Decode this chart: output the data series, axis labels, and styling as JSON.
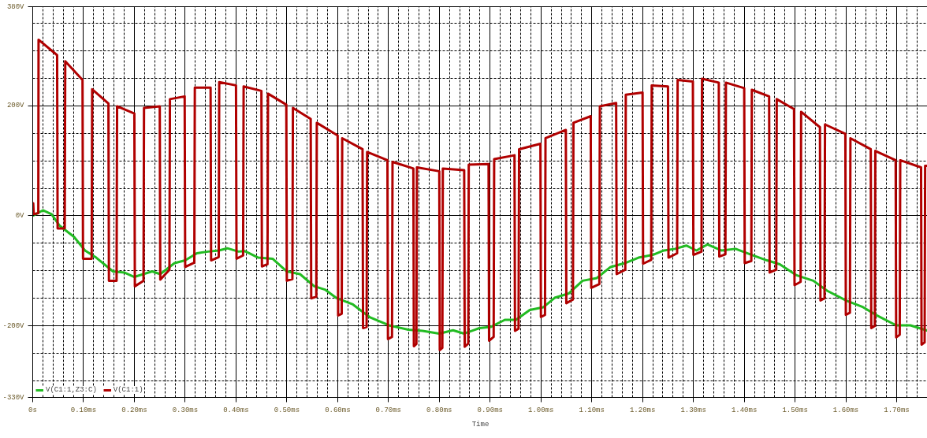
{
  "chart_data": {
    "type": "line",
    "xlabel": "Time",
    "legend": "bottom left",
    "grid": true,
    "xlim": [
      0,
      1.762
    ],
    "ylim": [
      -330,
      380
    ],
    "xticks": [
      {
        "value": 0,
        "label": "0s"
      },
      {
        "value": 0.02,
        "label": null
      },
      {
        "value": 0.04,
        "label": null
      },
      {
        "value": 0.06,
        "label": null
      },
      {
        "value": 0.08,
        "label": null
      },
      {
        "value": 0.1,
        "label": "0.10ms"
      },
      {
        "value": 0.12,
        "label": null
      },
      {
        "value": 0.14,
        "label": null
      },
      {
        "value": 0.16,
        "label": null
      },
      {
        "value": 0.18,
        "label": null
      },
      {
        "value": 0.2,
        "label": "0.20ms"
      },
      {
        "value": 0.22,
        "label": null
      },
      {
        "value": 0.24,
        "label": null
      },
      {
        "value": 0.26,
        "label": null
      },
      {
        "value": 0.28,
        "label": null
      },
      {
        "value": 0.3,
        "label": "0.30ms"
      },
      {
        "value": 0.32,
        "label": null
      },
      {
        "value": 0.34,
        "label": null
      },
      {
        "value": 0.36,
        "label": null
      },
      {
        "value": 0.38,
        "label": null
      },
      {
        "value": 0.4,
        "label": "0.40ms"
      },
      {
        "value": 0.42,
        "label": null
      },
      {
        "value": 0.44,
        "label": null
      },
      {
        "value": 0.46,
        "label": null
      },
      {
        "value": 0.48,
        "label": null
      },
      {
        "value": 0.5,
        "label": "0.50ms"
      },
      {
        "value": 0.52,
        "label": null
      },
      {
        "value": 0.54,
        "label": null
      },
      {
        "value": 0.56,
        "label": null
      },
      {
        "value": 0.58,
        "label": null
      },
      {
        "value": 0.6,
        "label": "0.60ms"
      },
      {
        "value": 0.62,
        "label": null
      },
      {
        "value": 0.64,
        "label": null
      },
      {
        "value": 0.66,
        "label": null
      },
      {
        "value": 0.68,
        "label": null
      },
      {
        "value": 0.7,
        "label": "0.70ms"
      },
      {
        "value": 0.72,
        "label": null
      },
      {
        "value": 0.74,
        "label": null
      },
      {
        "value": 0.76,
        "label": null
      },
      {
        "value": 0.78,
        "label": null
      },
      {
        "value": 0.8,
        "label": "0.80ms"
      },
      {
        "value": 0.82,
        "label": null
      },
      {
        "value": 0.84,
        "label": null
      },
      {
        "value": 0.86,
        "label": null
      },
      {
        "value": 0.88,
        "label": null
      },
      {
        "value": 0.9,
        "label": "0.90ms"
      },
      {
        "value": 0.92,
        "label": null
      },
      {
        "value": 0.94,
        "label": null
      },
      {
        "value": 0.96,
        "label": null
      },
      {
        "value": 0.98,
        "label": null
      },
      {
        "value": 1.0,
        "label": "1.00ms"
      },
      {
        "value": 1.02,
        "label": null
      },
      {
        "value": 1.04,
        "label": null
      },
      {
        "value": 1.06,
        "label": null
      },
      {
        "value": 1.08,
        "label": null
      },
      {
        "value": 1.1,
        "label": "1.10ms"
      },
      {
        "value": 1.12,
        "label": null
      },
      {
        "value": 1.14,
        "label": null
      },
      {
        "value": 1.16,
        "label": null
      },
      {
        "value": 1.18,
        "label": null
      },
      {
        "value": 1.2,
        "label": "1.20ms"
      },
      {
        "value": 1.22,
        "label": null
      },
      {
        "value": 1.24,
        "label": null
      },
      {
        "value": 1.26,
        "label": null
      },
      {
        "value": 1.28,
        "label": null
      },
      {
        "value": 1.3,
        "label": "1.30ms"
      },
      {
        "value": 1.32,
        "label": null
      },
      {
        "value": 1.34,
        "label": null
      },
      {
        "value": 1.36,
        "label": null
      },
      {
        "value": 1.38,
        "label": null
      },
      {
        "value": 1.4,
        "label": "1.40ms"
      },
      {
        "value": 1.42,
        "label": null
      },
      {
        "value": 1.44,
        "label": null
      },
      {
        "value": 1.46,
        "label": null
      },
      {
        "value": 1.48,
        "label": null
      },
      {
        "value": 1.5,
        "label": "1.50ms"
      },
      {
        "value": 1.52,
        "label": null
      },
      {
        "value": 1.54,
        "label": null
      },
      {
        "value": 1.56,
        "label": null
      },
      {
        "value": 1.58,
        "label": null
      },
      {
        "value": 1.6,
        "label": "1.60ms"
      },
      {
        "value": 1.62,
        "label": null
      },
      {
        "value": 1.64,
        "label": null
      },
      {
        "value": 1.66,
        "label": null
      },
      {
        "value": 1.68,
        "label": null
      },
      {
        "value": 1.7,
        "label": "1.70ms"
      },
      {
        "value": 1.72,
        "label": null
      },
      {
        "value": 1.74,
        "label": null
      }
    ],
    "yticks": [
      {
        "value": -330,
        "label": "-330V"
      },
      {
        "value": -300,
        "label": null
      },
      {
        "value": -250,
        "label": null
      },
      {
        "value": -200,
        "label": "-200V"
      },
      {
        "value": -150,
        "label": null
      },
      {
        "value": -100,
        "label": null
      },
      {
        "value": -50,
        "label": null
      },
      {
        "value": 0,
        "label": "0V"
      },
      {
        "value": 50,
        "label": null
      },
      {
        "value": 100,
        "label": null
      },
      {
        "value": 150,
        "label": null
      },
      {
        "value": 200,
        "label": "200V"
      },
      {
        "value": 250,
        "label": null
      },
      {
        "value": 300,
        "label": null
      },
      {
        "value": 350,
        "label": null
      },
      {
        "value": 380,
        "label": "380V"
      }
    ],
    "series": [
      {
        "name": "V(C1:1,Z3:C)",
        "color": "#22bb22",
        "x": [
          0,
          0.02,
          0.037,
          0.053,
          0.081,
          0.103,
          0.125,
          0.158,
          0.18,
          0.2,
          0.235,
          0.251,
          0.279,
          0.3,
          0.323,
          0.345,
          0.366,
          0.383,
          0.405,
          0.417,
          0.444,
          0.472,
          0.5,
          0.526,
          0.554,
          0.575,
          0.597,
          0.63,
          0.663,
          0.701,
          0.739,
          0.767,
          0.8,
          0.827,
          0.849,
          0.87,
          0.879,
          0.901,
          0.929,
          0.951,
          0.978,
          1.005,
          1.027,
          1.055,
          1.082,
          1.11,
          1.137,
          1.165,
          1.192,
          1.22,
          1.242,
          1.264,
          1.286,
          1.306,
          1.328,
          1.355,
          1.383,
          1.415,
          1.445,
          1.47,
          1.503,
          1.536,
          1.563,
          1.601,
          1.634,
          1.661,
          1.699,
          1.727,
          1.762
        ],
        "values": [
          0,
          10,
          3,
          -18,
          -38,
          -63,
          -76,
          -101,
          -103,
          -111,
          -101,
          -106,
          -86,
          -81,
          -68,
          -65,
          -63,
          -59,
          -65,
          -64,
          -76,
          -78,
          -101,
          -106,
          -128,
          -134,
          -149,
          -161,
          -184,
          -199,
          -207,
          -209,
          -214,
          -208,
          -214,
          -207,
          -204,
          -202,
          -189,
          -189,
          -171,
          -166,
          -149,
          -141,
          -118,
          -113,
          -93,
          -86,
          -76,
          -71,
          -63,
          -60,
          -54,
          -63,
          -52,
          -63,
          -60,
          -71,
          -81,
          -88,
          -108,
          -118,
          -136,
          -154,
          -166,
          -181,
          -199,
          -199,
          -209
        ]
      },
      {
        "name": "V(C1:1)",
        "color": "#b00000",
        "x": [
          0,
          0.001,
          0.002,
          0.011,
          0.0115,
          0.048,
          0.049,
          0.063,
          0.064,
          0.098,
          0.099,
          0.116,
          0.117,
          0.149,
          0.15,
          0.165,
          0.166,
          0.2,
          0.201,
          0.218,
          0.219,
          0.25,
          0.251,
          0.269,
          0.27,
          0.299,
          0.3,
          0.318,
          0.319,
          0.35,
          0.351,
          0.366,
          0.367,
          0.4,
          0.401,
          0.414,
          0.415,
          0.45,
          0.451,
          0.462,
          0.463,
          0.499,
          0.5,
          0.511,
          0.512,
          0.547,
          0.548,
          0.558,
          0.559,
          0.6,
          0.601,
          0.608,
          0.609,
          0.649,
          0.65,
          0.657,
          0.658,
          0.698,
          0.699,
          0.707,
          0.708,
          0.749,
          0.75,
          0.755,
          0.756,
          0.8,
          0.801,
          0.806,
          0.807,
          0.849,
          0.85,
          0.857,
          0.858,
          0.897,
          0.898,
          0.907,
          0.908,
          0.948,
          0.949,
          0.956,
          0.957,
          0.999,
          1.0,
          1.008,
          1.009,
          1.049,
          1.05,
          1.063,
          1.064,
          1.098,
          1.099,
          1.115,
          1.116,
          1.148,
          1.149,
          1.166,
          1.167,
          1.2,
          1.201,
          1.217,
          1.218,
          1.25,
          1.251,
          1.268,
          1.269,
          1.299,
          1.3,
          1.316,
          1.317,
          1.35,
          1.351,
          1.363,
          1.364,
          1.4,
          1.401,
          1.414,
          1.415,
          1.449,
          1.45,
          1.463,
          1.464,
          1.498,
          1.499,
          1.511,
          1.512,
          1.549,
          1.55,
          1.558,
          1.559,
          1.599,
          1.6,
          1.608,
          1.609,
          1.649,
          1.65,
          1.657,
          1.658,
          1.698,
          1.699,
          1.706,
          1.707,
          1.748,
          1.749,
          1.755,
          1.756,
          1.762
        ],
        "values": [
          5,
          23,
          3,
          5,
          320,
          292,
          -23,
          -23,
          281,
          247,
          -78,
          -78,
          230,
          204,
          -118,
          -118,
          199,
          186,
          -128,
          -118,
          196,
          199,
          -116,
          -98,
          212,
          217,
          -93,
          -85,
          233,
          233,
          -81,
          -75,
          243,
          237,
          -78,
          -72,
          235,
          227,
          -92,
          -88,
          222,
          202,
          -118,
          -115,
          196,
          176,
          -150,
          -147,
          169,
          146,
          -181,
          -178,
          141,
          121,
          -204,
          -202,
          116,
          101,
          -224,
          -220,
          98,
          86,
          -237,
          -233,
          88,
          81,
          -244,
          -240,
          86,
          83,
          -238,
          -232,
          93,
          94,
          -227,
          -220,
          103,
          110,
          -209,
          -205,
          121,
          131,
          -184,
          -180,
          141,
          156,
          -159,
          -152,
          169,
          181,
          -131,
          -124,
          199,
          205,
          -106,
          -98,
          220,
          224,
          -87,
          -80,
          237,
          235,
          -76,
          -68,
          247,
          244,
          -71,
          -65,
          249,
          242,
          -74,
          -70,
          242,
          232,
          -86,
          -82,
          229,
          217,
          -103,
          -98,
          212,
          194,
          -126,
          -120,
          189,
          161,
          -154,
          -150,
          166,
          149,
          -180,
          -176,
          141,
          121,
          -204,
          -200,
          118,
          101,
          -221,
          -216,
          101,
          88,
          -234,
          -230,
          91,
          91
        ]
      }
    ]
  }
}
